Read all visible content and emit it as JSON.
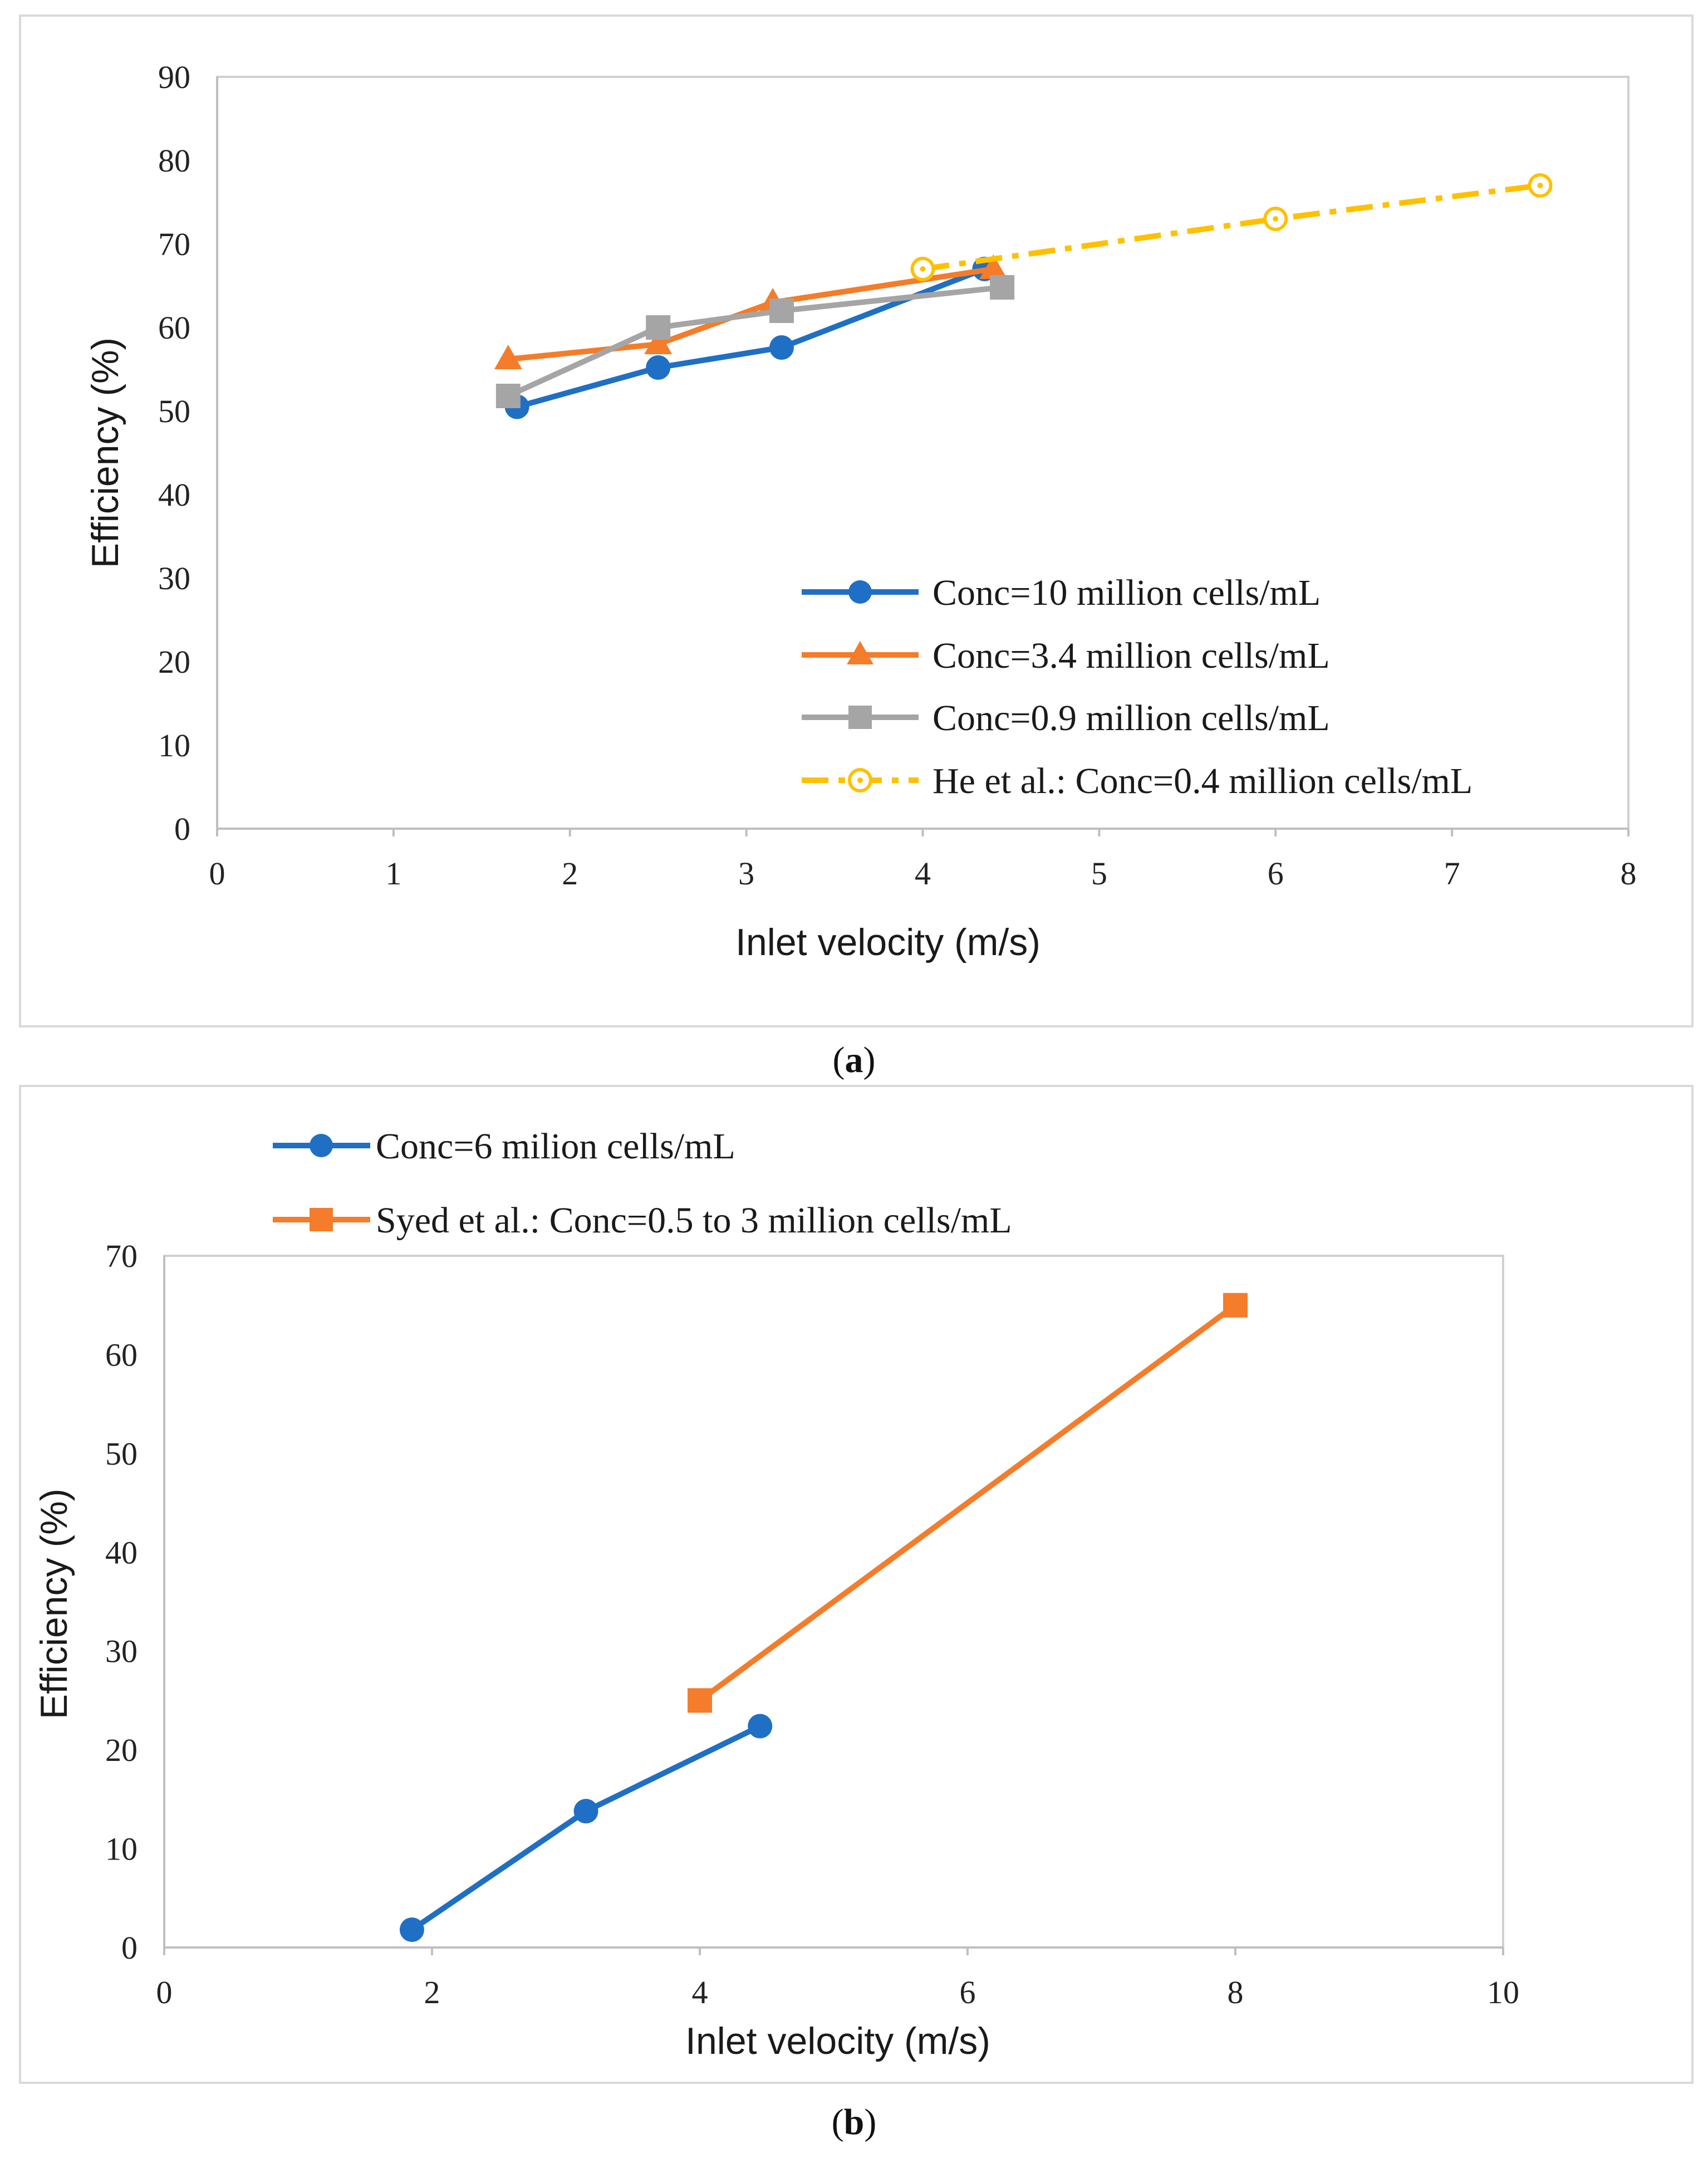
{
  "chart_data": [
    {
      "type": "line",
      "panel": "a",
      "caption_open": "(",
      "caption_letter": "a",
      "caption_close": ")",
      "xlabel": "Inlet velocity (m/s)",
      "ylabel": "Efficiency (%)",
      "xlim": [
        0,
        8
      ],
      "ylim": [
        0,
        90
      ],
      "xticks": [
        0,
        1,
        2,
        3,
        4,
        5,
        6,
        7,
        8
      ],
      "yticks": [
        0,
        10,
        20,
        30,
        40,
        50,
        60,
        70,
        80,
        90
      ],
      "grid": false,
      "legend_position": "bottom-right",
      "series": [
        {
          "name": "Conc=10 million cells/mL",
          "color": "#1f6fc5",
          "marker": "circle",
          "line_style": "solid",
          "x": [
            1.7,
            2.5,
            3.2,
            4.35
          ],
          "y": [
            50.5,
            55.2,
            57.6,
            67.0
          ]
        },
        {
          "name": "Conc=3.4 million cells/mL",
          "color": "#f47c2a",
          "marker": "triangle",
          "line_style": "solid",
          "x": [
            1.65,
            2.5,
            3.15,
            4.4
          ],
          "y": [
            56.2,
            58.0,
            63.0,
            67.0
          ]
        },
        {
          "name": "Conc=0.9 million cells/mL",
          "color": "#a5a5a5",
          "marker": "square",
          "line_style": "solid",
          "x": [
            1.65,
            2.5,
            3.2,
            4.45
          ],
          "y": [
            51.8,
            60.0,
            62.0,
            64.8
          ]
        },
        {
          "name": "He et al.: Conc=0.4 million cells/mL",
          "color": "#ffc000",
          "marker": "open-circle",
          "line_style": "dash-dot",
          "x": [
            4.0,
            6.0,
            7.5
          ],
          "y": [
            67.0,
            73.0,
            77.0
          ]
        }
      ]
    },
    {
      "type": "line",
      "panel": "b",
      "caption_open": "(",
      "caption_letter": "b",
      "caption_close": ")",
      "xlabel": "Inlet velocity (m/s)",
      "ylabel": "Efficiency (%)",
      "xlim": [
        0,
        10
      ],
      "ylim": [
        0,
        70
      ],
      "xticks": [
        0,
        2,
        4,
        6,
        8,
        10
      ],
      "yticks": [
        0,
        10,
        20,
        30,
        40,
        50,
        60,
        70
      ],
      "grid": false,
      "legend_position": "top-left",
      "series": [
        {
          "name": "Conc=6 milion cells/mL",
          "color": "#1f6fc5",
          "marker": "circle",
          "line_style": "solid",
          "x": [
            1.85,
            3.15,
            4.45
          ],
          "y": [
            1.8,
            13.8,
            22.4
          ]
        },
        {
          "name": "Syed et al.: Conc=0.5 to 3 million cells/mL",
          "color": "#f47c2a",
          "marker": "square",
          "line_style": "solid",
          "x": [
            4.0,
            8.0
          ],
          "y": [
            25.0,
            65.0
          ]
        }
      ]
    }
  ]
}
